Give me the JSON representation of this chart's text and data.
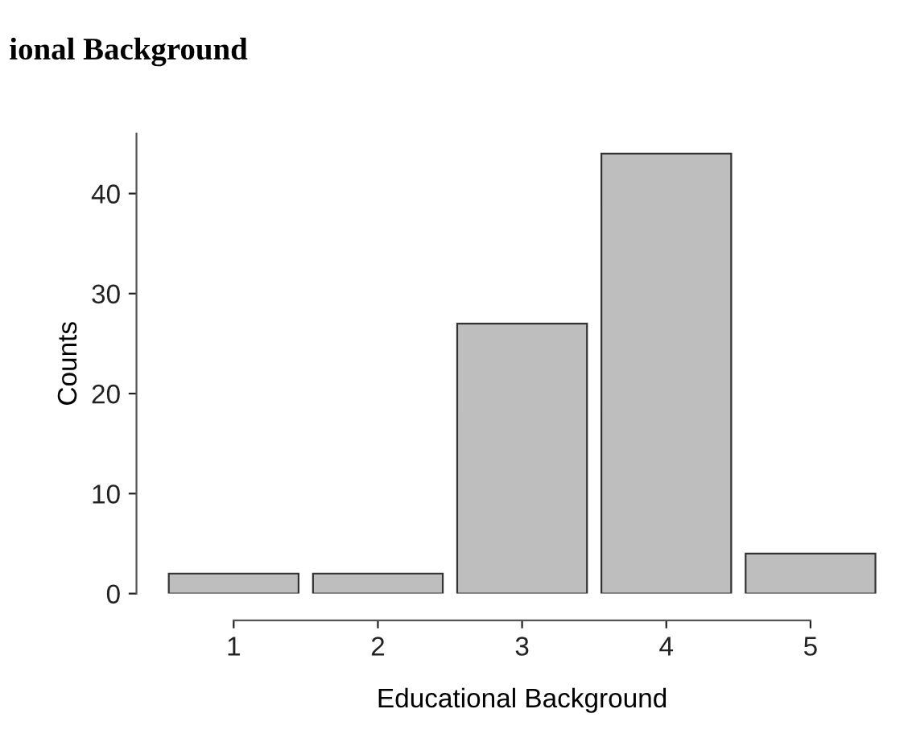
{
  "chart_data": {
    "type": "bar",
    "title": "ional Background",
    "xlabel": "Educational Background",
    "ylabel": "Counts",
    "categories": [
      "1",
      "2",
      "3",
      "4",
      "5"
    ],
    "values": [
      2,
      2,
      27,
      44,
      4
    ],
    "color": "#bebebe",
    "ylim": [
      0,
      46
    ],
    "yticks": [
      0,
      10,
      20,
      30,
      40
    ],
    "grid": false
  }
}
